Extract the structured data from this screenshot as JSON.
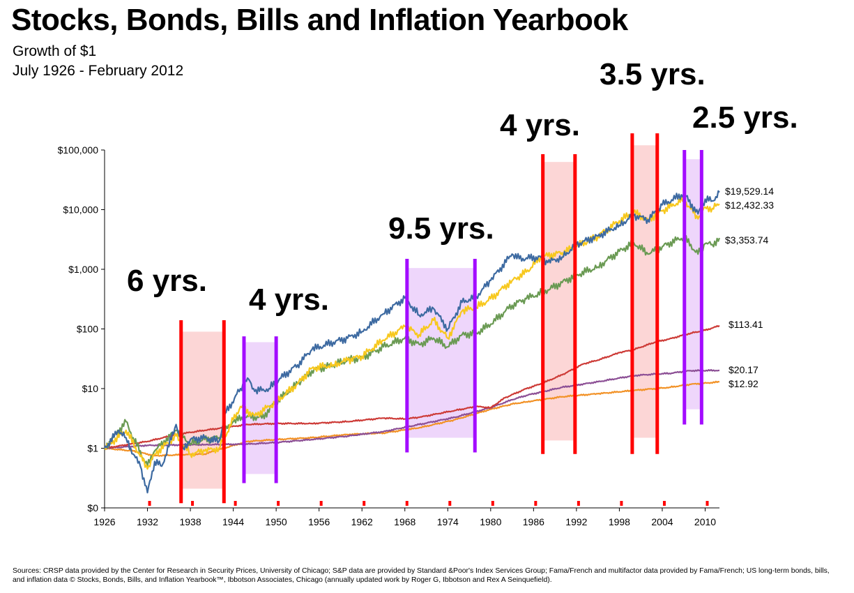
{
  "chart_data": {
    "type": "line",
    "title": "Stocks, Bonds, Bills and Inflation Yearbook",
    "subtitle": "Growth of $1",
    "period": "July 1926 - February 2012",
    "y_scale": "log",
    "ylim": [
      0.1,
      100000
    ],
    "xlim": [
      1926,
      2012
    ],
    "y_ticks": [
      {
        "value": 100000,
        "label": "$100,000"
      },
      {
        "value": 10000,
        "label": "$10,000"
      },
      {
        "value": 1000,
        "label": "$1,000"
      },
      {
        "value": 100,
        "label": "$100"
      },
      {
        "value": 10,
        "label": "$10"
      },
      {
        "value": 1,
        "label": "$1"
      },
      {
        "value": 0.1,
        "label": "$0"
      }
    ],
    "x_ticks": [
      "1926",
      "1932",
      "1938",
      "1944",
      "1950",
      "1956",
      "1962",
      "1968",
      "1974",
      "1980",
      "1986",
      "1992",
      "1998",
      "2004",
      "2010"
    ],
    "series": [
      {
        "color": "#3d6aa1",
        "end_label": "$19,529.14",
        "points": [
          [
            1926,
            1
          ],
          [
            1928,
            2
          ],
          [
            1929,
            1.5
          ],
          [
            1930,
            0.8
          ],
          [
            1931,
            0.5
          ],
          [
            1932,
            0.18
          ],
          [
            1933,
            0.6
          ],
          [
            1934,
            0.5
          ],
          [
            1936,
            2.5
          ],
          [
            1937,
            1
          ],
          [
            1938,
            1.4
          ],
          [
            1940,
            1.5
          ],
          [
            1942,
            1.3
          ],
          [
            1943,
            4
          ],
          [
            1945,
            10
          ],
          [
            1946,
            15
          ],
          [
            1947,
            9
          ],
          [
            1949,
            10
          ],
          [
            1950,
            13
          ],
          [
            1953,
            25
          ],
          [
            1955,
            45
          ],
          [
            1958,
            60
          ],
          [
            1960,
            70
          ],
          [
            1962,
            90
          ],
          [
            1965,
            180
          ],
          [
            1968,
            330
          ],
          [
            1970,
            170
          ],
          [
            1972,
            220
          ],
          [
            1974,
            100
          ],
          [
            1976,
            280
          ],
          [
            1978,
            350
          ],
          [
            1980,
            650
          ],
          [
            1983,
            1800
          ],
          [
            1984,
            1500
          ],
          [
            1987,
            1600
          ],
          [
            1988,
            1300
          ],
          [
            1990,
            1600
          ],
          [
            1992,
            2600
          ],
          [
            1995,
            3600
          ],
          [
            1998,
            5500
          ],
          [
            2000,
            8000
          ],
          [
            2002,
            6800
          ],
          [
            2004,
            12000
          ],
          [
            2007,
            18500
          ],
          [
            2009,
            8500
          ],
          [
            2010,
            15000
          ],
          [
            2011,
            14000
          ],
          [
            2012,
            19529
          ]
        ]
      },
      {
        "color": "#f7c81e",
        "end_label": "$12,432.33",
        "points": [
          [
            1926,
            1
          ],
          [
            1929,
            2
          ],
          [
            1932,
            0.45
          ],
          [
            1933,
            0.8
          ],
          [
            1936,
            1.6
          ],
          [
            1938,
            0.8
          ],
          [
            1940,
            0.9
          ],
          [
            1942,
            1
          ],
          [
            1944,
            3
          ],
          [
            1945,
            5
          ],
          [
            1947,
            3.5
          ],
          [
            1950,
            6
          ],
          [
            1953,
            12
          ],
          [
            1955,
            22
          ],
          [
            1958,
            25
          ],
          [
            1960,
            30
          ],
          [
            1962,
            35
          ],
          [
            1965,
            65
          ],
          [
            1968,
            110
          ],
          [
            1970,
            80
          ],
          [
            1972,
            140
          ],
          [
            1974,
            70
          ],
          [
            1976,
            200
          ],
          [
            1978,
            230
          ],
          [
            1980,
            320
          ],
          [
            1983,
            650
          ],
          [
            1985,
            900
          ],
          [
            1987,
            1600
          ],
          [
            1990,
            1900
          ],
          [
            1992,
            2400
          ],
          [
            1995,
            3600
          ],
          [
            1998,
            6500
          ],
          [
            2000,
            9000
          ],
          [
            2002,
            6800
          ],
          [
            2004,
            9500
          ],
          [
            2007,
            15000
          ],
          [
            2009,
            7000
          ],
          [
            2010,
            11000
          ],
          [
            2011,
            10500
          ],
          [
            2012,
            12432
          ]
        ]
      },
      {
        "color": "#6a9a53",
        "end_label": "$3,353.74",
        "points": [
          [
            1926,
            1
          ],
          [
            1929,
            2.8
          ],
          [
            1930,
            1.5
          ],
          [
            1932,
            0.5
          ],
          [
            1933,
            0.9
          ],
          [
            1936,
            2
          ],
          [
            1938,
            1.2
          ],
          [
            1940,
            1.4
          ],
          [
            1942,
            1.5
          ],
          [
            1944,
            2.8
          ],
          [
            1946,
            3.5
          ],
          [
            1948,
            3.2
          ],
          [
            1950,
            6
          ],
          [
            1953,
            12
          ],
          [
            1955,
            20
          ],
          [
            1958,
            25
          ],
          [
            1960,
            30
          ],
          [
            1962,
            33
          ],
          [
            1965,
            50
          ],
          [
            1968,
            70
          ],
          [
            1970,
            55
          ],
          [
            1972,
            70
          ],
          [
            1974,
            50
          ],
          [
            1976,
            80
          ],
          [
            1978,
            85
          ],
          [
            1980,
            120
          ],
          [
            1983,
            250
          ],
          [
            1985,
            320
          ],
          [
            1988,
            450
          ],
          [
            1990,
            600
          ],
          [
            1992,
            800
          ],
          [
            1995,
            1100
          ],
          [
            1998,
            2000
          ],
          [
            2000,
            2800
          ],
          [
            2002,
            1800
          ],
          [
            2004,
            2400
          ],
          [
            2007,
            3500
          ],
          [
            2009,
            1800
          ],
          [
            2010,
            2700
          ],
          [
            2011,
            2600
          ],
          [
            2012,
            3354
          ]
        ]
      },
      {
        "color": "#cd3b37",
        "end_label": "$113.41",
        "points": [
          [
            1926,
            1
          ],
          [
            1932,
            1.3
          ],
          [
            1936,
            1.7
          ],
          [
            1940,
            2
          ],
          [
            1946,
            2.5
          ],
          [
            1950,
            2.6
          ],
          [
            1955,
            2.6
          ],
          [
            1960,
            2.8
          ],
          [
            1965,
            3.2
          ],
          [
            1968,
            3.1
          ],
          [
            1970,
            3.3
          ],
          [
            1975,
            4.3
          ],
          [
            1978,
            5
          ],
          [
            1980,
            4.8
          ],
          [
            1982,
            7
          ],
          [
            1985,
            10
          ],
          [
            1987,
            12
          ],
          [
            1990,
            17
          ],
          [
            1993,
            26
          ],
          [
            1995,
            30
          ],
          [
            1998,
            40
          ],
          [
            2000,
            45
          ],
          [
            2003,
            60
          ],
          [
            2005,
            68
          ],
          [
            2008,
            85
          ],
          [
            2010,
            95
          ],
          [
            2012,
            113.41
          ]
        ]
      },
      {
        "color": "#8c4f95",
        "end_label": "$20.17",
        "points": [
          [
            1926,
            1
          ],
          [
            1932,
            1.12
          ],
          [
            1940,
            1.15
          ],
          [
            1946,
            1.17
          ],
          [
            1950,
            1.25
          ],
          [
            1955,
            1.4
          ],
          [
            1960,
            1.6
          ],
          [
            1965,
            1.9
          ],
          [
            1970,
            2.5
          ],
          [
            1975,
            3.3
          ],
          [
            1980,
            4.8
          ],
          [
            1983,
            6.5
          ],
          [
            1985,
            7.7
          ],
          [
            1990,
            10.5
          ],
          [
            1995,
            13
          ],
          [
            2000,
            16.5
          ],
          [
            2003,
            17.5
          ],
          [
            2005,
            18
          ],
          [
            2008,
            20
          ],
          [
            2012,
            20.17
          ]
        ]
      },
      {
        "color": "#f29227",
        "end_label": "$12.92",
        "points": [
          [
            1926,
            1
          ],
          [
            1930,
            0.9
          ],
          [
            1933,
            0.75
          ],
          [
            1940,
            0.8
          ],
          [
            1942,
            0.95
          ],
          [
            1946,
            1.3
          ],
          [
            1950,
            1.4
          ],
          [
            1955,
            1.5
          ],
          [
            1960,
            1.7
          ],
          [
            1965,
            1.8
          ],
          [
            1970,
            2.2
          ],
          [
            1975,
            3
          ],
          [
            1980,
            4.5
          ],
          [
            1983,
            5.5
          ],
          [
            1985,
            6
          ],
          [
            1990,
            7.3
          ],
          [
            1995,
            8.2
          ],
          [
            2000,
            9.3
          ],
          [
            2005,
            10.5
          ],
          [
            2008,
            11.8
          ],
          [
            2012,
            12.92
          ]
        ]
      }
    ],
    "annotations": [
      {
        "label": "6 yrs.",
        "start": 1936.7,
        "end": 1942.7,
        "color": "#ff0000",
        "fill": "#fcd6d6",
        "band": [
          0.21,
          90
        ],
        "lines": [
          0.12,
          140
        ]
      },
      {
        "label": "4 yrs.",
        "start": 1945.5,
        "end": 1950,
        "color": "#a30cff",
        "fill": "#eed6fb",
        "band": [
          0.37,
          60
        ],
        "lines": [
          0.26,
          75
        ]
      },
      {
        "label": "9.5 yrs.",
        "start": 1968.3,
        "end": 1977.8,
        "color": "#a30cff",
        "fill": "#eed6fb",
        "band": [
          1.5,
          1050
        ],
        "lines": [
          0.85,
          1500
        ]
      },
      {
        "label": "4 yrs.",
        "start": 1987.3,
        "end": 1991.8,
        "color": "#ff0000",
        "fill": "#fcd6d6",
        "band": [
          1.35,
          63000
        ],
        "lines": [
          0.8,
          85000
        ]
      },
      {
        "label": "3.5 yrs.",
        "start": 1999.8,
        "end": 2003.3,
        "color": "#ff0000",
        "fill": "#fcd6d6",
        "band": [
          1.5,
          120000
        ],
        "lines": [
          0.8,
          190000
        ]
      },
      {
        "label": "2.5 yrs.",
        "start": 2007.1,
        "end": 2009.5,
        "color": "#a30cff",
        "fill": "#eed6fb",
        "band": [
          4.5,
          70000
        ],
        "lines": [
          2.5,
          100000
        ]
      }
    ],
    "source": "Sources: CRSP data provided by the Center for Research in Security Prices, University of Chicago; S&P data are provided by Standard &Poor's Index Services Group; Fama/French and multifactor data provided by Fama/French; US long-term bonds, bills, and inflation data © Stocks, Bonds, Bills, and Inflation Yearbook™, Ibbotson Associates, Chicago (annually updated work by Roger G, Ibbotson and Rex A Seinquefield)."
  }
}
